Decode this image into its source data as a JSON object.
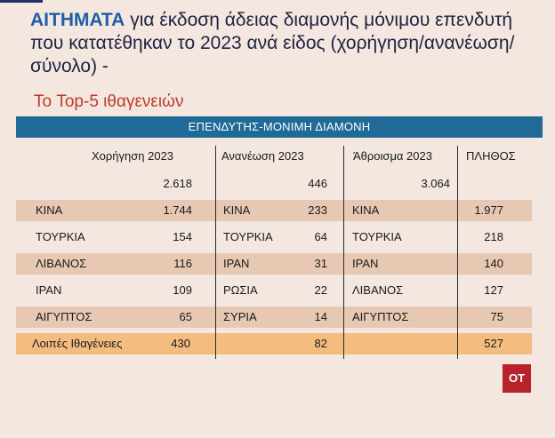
{
  "title": {
    "highlight": "ΑΙΤΗΜΑΤΑ",
    "rest": "για έκδοση άδειας διαμονής μόνιμου επενδυτή που κατατέθηκαν το 2023 ανά είδος (χορήγηση/ανανέωση/σύνολο) -"
  },
  "subtitle": "Το Top-5 ιθαγενειών",
  "banner": "ΕΠΕΝΔΥΤΗΣ-ΜΟΝΙΜΗ ΔΙΑΜΟΝΗ",
  "headers": {
    "grant": "Χορήγηση 2023",
    "renewal": "Ανανέωση 2023",
    "sum": "Άθροισμα 2023",
    "count": "ΠΛΗΘΟΣ"
  },
  "totals": {
    "grant": "2.618",
    "renewal": "446",
    "sum": "3.064"
  },
  "rows": [
    {
      "g_country": "ΚΙΝΑ",
      "g_value": "1.744",
      "r_country": "ΚΙΝΑ",
      "r_value": "233",
      "s_country": "ΚΙΝΑ",
      "s_value": "1.977"
    },
    {
      "g_country": "ΤΟΥΡΚΙΑ",
      "g_value": "154",
      "r_country": "ΤΟΥΡΚΙΑ",
      "r_value": "64",
      "s_country": "ΤΟΥΡΚΙΑ",
      "s_value": "218"
    },
    {
      "g_country": "ΛΙΒΑΝΟΣ",
      "g_value": "116",
      "r_country": "ΙΡΑΝ",
      "r_value": "31",
      "s_country": "ΙΡΑΝ",
      "s_value": "140"
    },
    {
      "g_country": "ΙΡΑΝ",
      "g_value": "109",
      "r_country": "ΡΩΣΙΑ",
      "r_value": "22",
      "s_country": "ΛΙΒΑΝΟΣ",
      "s_value": "127"
    },
    {
      "g_country": "ΑΙΓΥΠΤΟΣ",
      "g_value": "65",
      "r_country": "ΣΥΡΙΑ",
      "r_value": "14",
      "s_country": "ΑΙΓΥΠΤΟΣ",
      "s_value": "75"
    }
  ],
  "others": {
    "label": "Λοιπές Ιθαγένειες",
    "grant": "430",
    "renewal": "82",
    "sum": "527"
  },
  "logo": "OT",
  "colors": {
    "background": "#f3e7e0",
    "title_highlight": "#1f5ea8",
    "subtitle": "#c0392b",
    "banner": "#1f6a96",
    "row_band": "#e7c9b3",
    "others_band": "#f4bd80",
    "logo_bg": "#b8222a"
  }
}
